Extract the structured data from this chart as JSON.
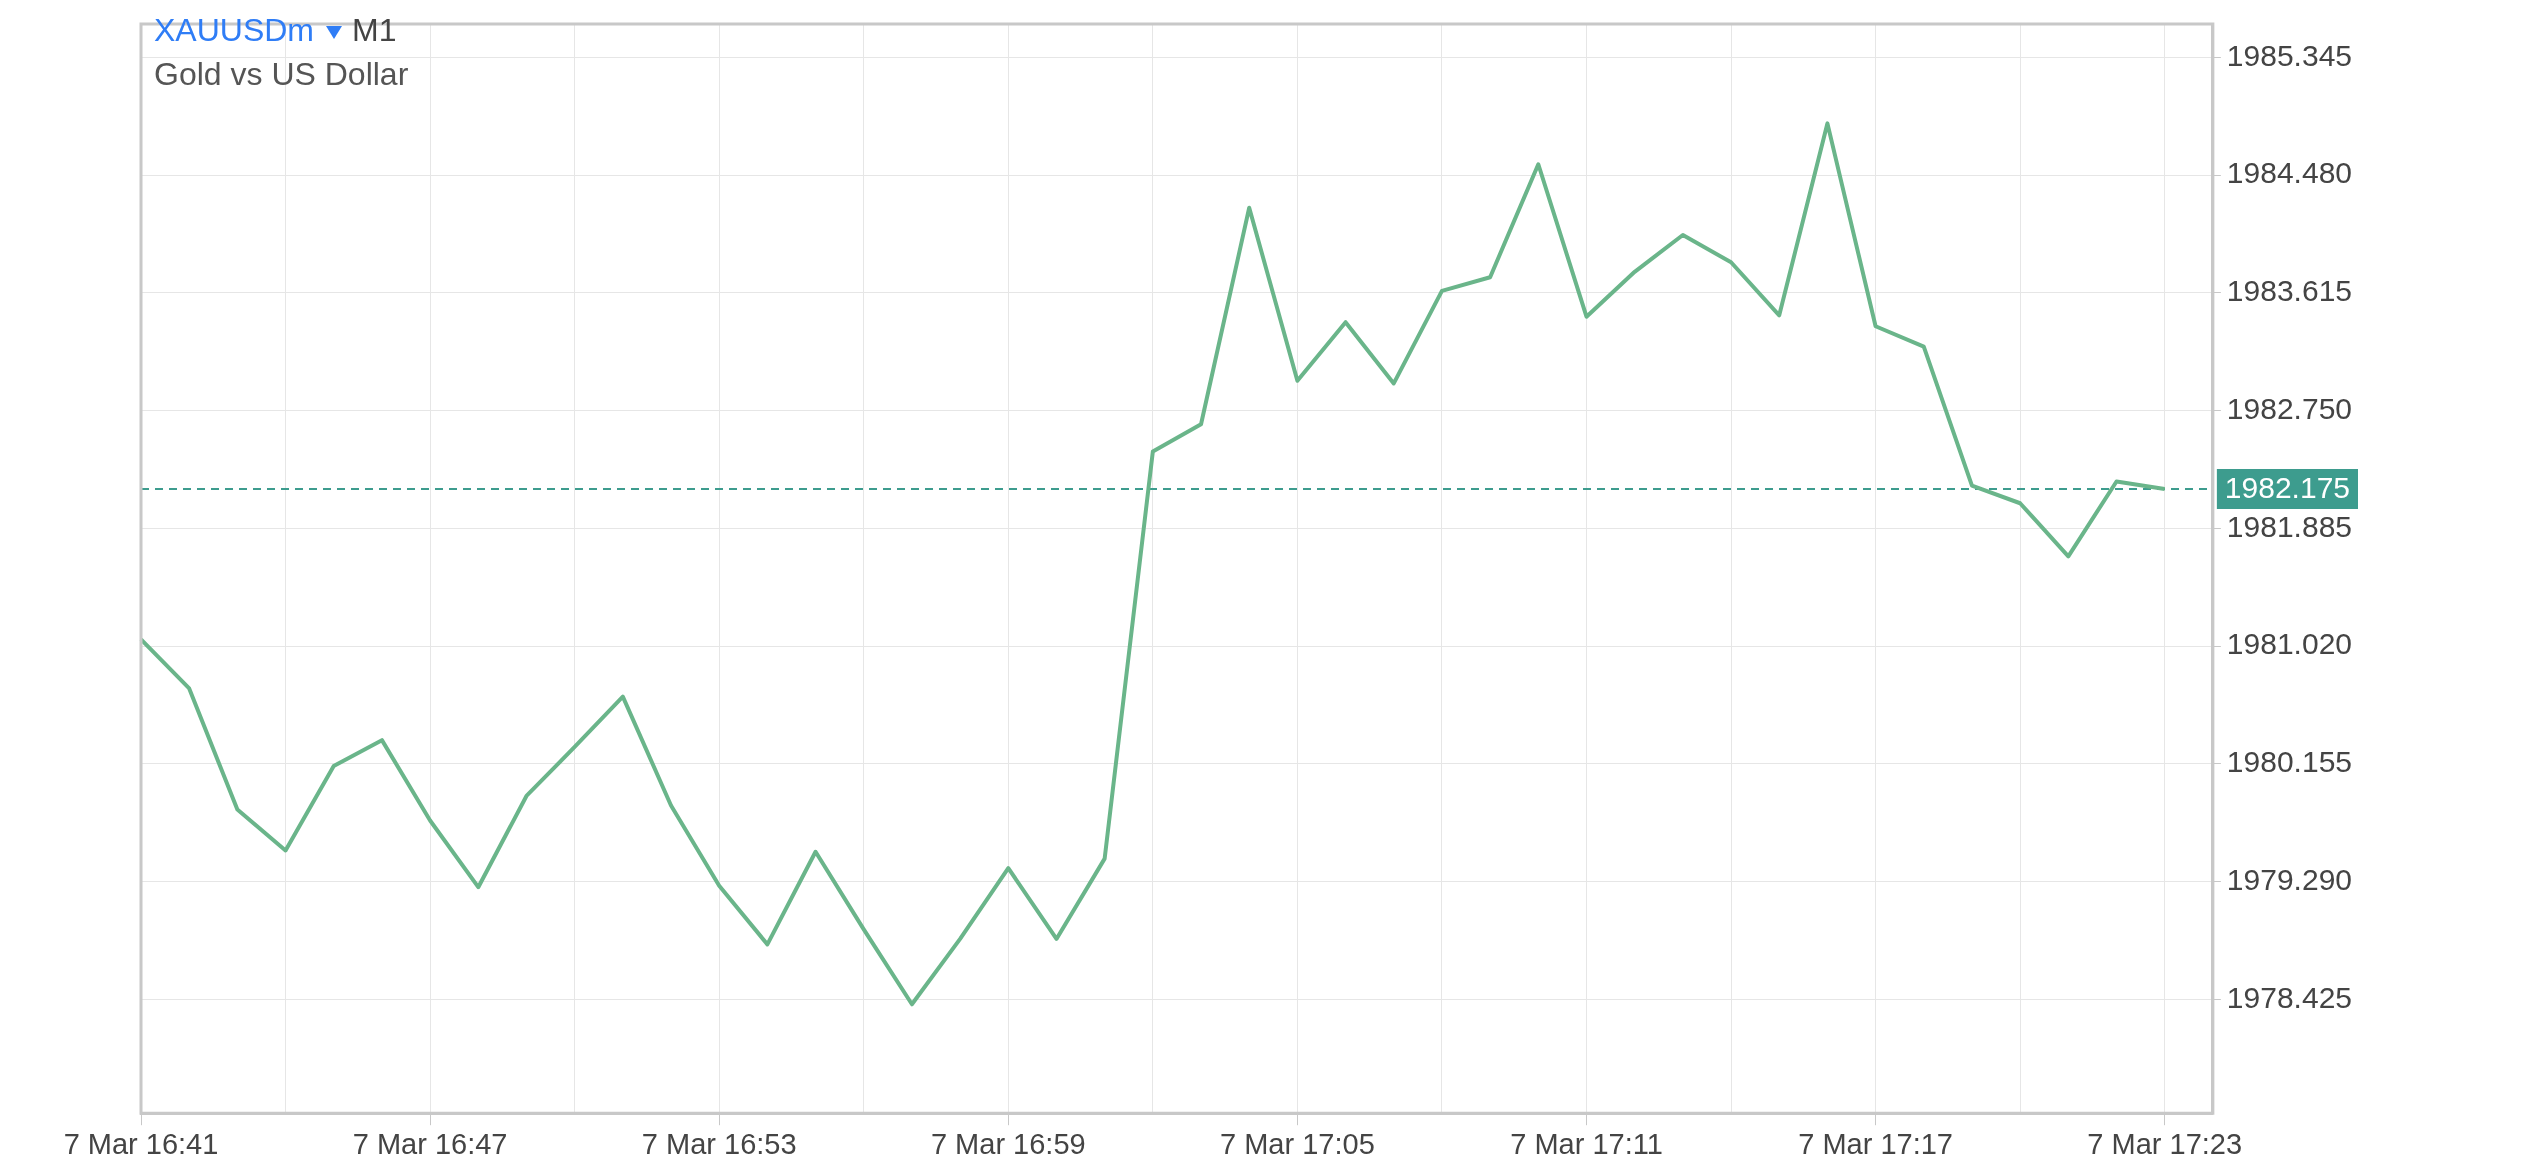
{
  "chart_data": {
    "type": "line",
    "title": "XAUUSDm",
    "subtitle": "Gold vs US Dollar",
    "annotations": [
      "M1"
    ],
    "categories": [
      "7 Mar 16:41",
      null,
      null,
      null,
      null,
      null,
      "7 Mar 16:47",
      null,
      null,
      null,
      null,
      null,
      "7 Mar 16:53",
      null,
      null,
      null,
      null,
      null,
      "7 Mar 16:59",
      null,
      null,
      null,
      null,
      null,
      "7 Mar 17:05",
      null,
      null,
      null,
      null,
      null,
      "7 Mar 17:11",
      null,
      null,
      null,
      null,
      null,
      "7 Mar 17:17",
      null,
      null,
      null,
      null,
      null,
      "7 Mar 17:23",
      null
    ],
    "series": [
      {
        "color": "#6ab58a",
        "values": [
          1981.07,
          1980.71,
          1979.82,
          1979.52,
          1980.14,
          1980.33,
          1979.74,
          1979.25,
          1979.92,
          1980.28,
          1980.65,
          1979.85,
          1979.26,
          1978.83,
          1979.51,
          1978.94,
          1978.39,
          1978.87,
          1979.39,
          1978.87,
          1979.46,
          1982.45,
          1982.65,
          1984.24,
          1982.97,
          1983.4,
          1982.95,
          1983.63,
          1983.73,
          1984.56,
          1983.44,
          1983.77,
          1984.04,
          1983.84,
          1983.45,
          1984.86,
          1983.37,
          1983.22,
          1982.2,
          1982.07,
          1981.68,
          1982.23,
          1982.175,
          null
        ]
      }
    ],
    "ylim": [
      1977.59,
      1985.59
    ],
    "yticks": [
      1978.425,
      {
        "value": 1979.29,
        "label": "1979.290"
      },
      1980.155,
      {
        "value": 1981.02,
        "label": "1981.020"
      },
      1981.885,
      {
        "value": 1982.75,
        "label": "1982.750"
      },
      1983.615,
      {
        "value": 1984.48,
        "label": "1984.480"
      },
      1985.345
    ],
    "grid": true,
    "legend": false,
    "ref_lines": [
      {
        "axis": "y",
        "value": 1982.175,
        "label": "1982.175",
        "color": "#3d9c8e",
        "line_style": "dashed"
      }
    ]
  }
}
